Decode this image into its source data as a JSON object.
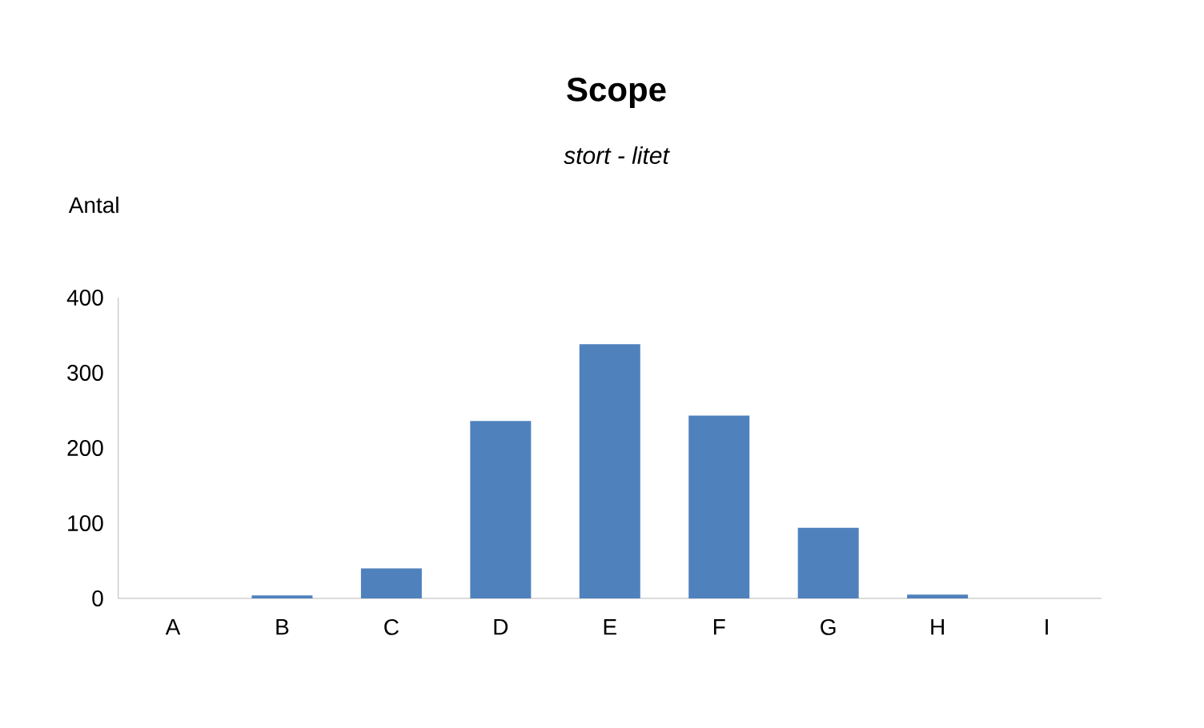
{
  "chart_data": {
    "type": "bar",
    "title": "Scope",
    "subtitle": "stort - litet",
    "ylabel": "Antal",
    "categories": [
      "A",
      "B",
      "C",
      "D",
      "E",
      "F",
      "G",
      "H",
      "I"
    ],
    "values": [
      0,
      4,
      40,
      236,
      338,
      243,
      94,
      5,
      0
    ],
    "color": "#4f81bd",
    "ylim": [
      0,
      400
    ],
    "yticks": [
      0,
      100,
      200,
      300,
      400
    ],
    "grid": false
  }
}
